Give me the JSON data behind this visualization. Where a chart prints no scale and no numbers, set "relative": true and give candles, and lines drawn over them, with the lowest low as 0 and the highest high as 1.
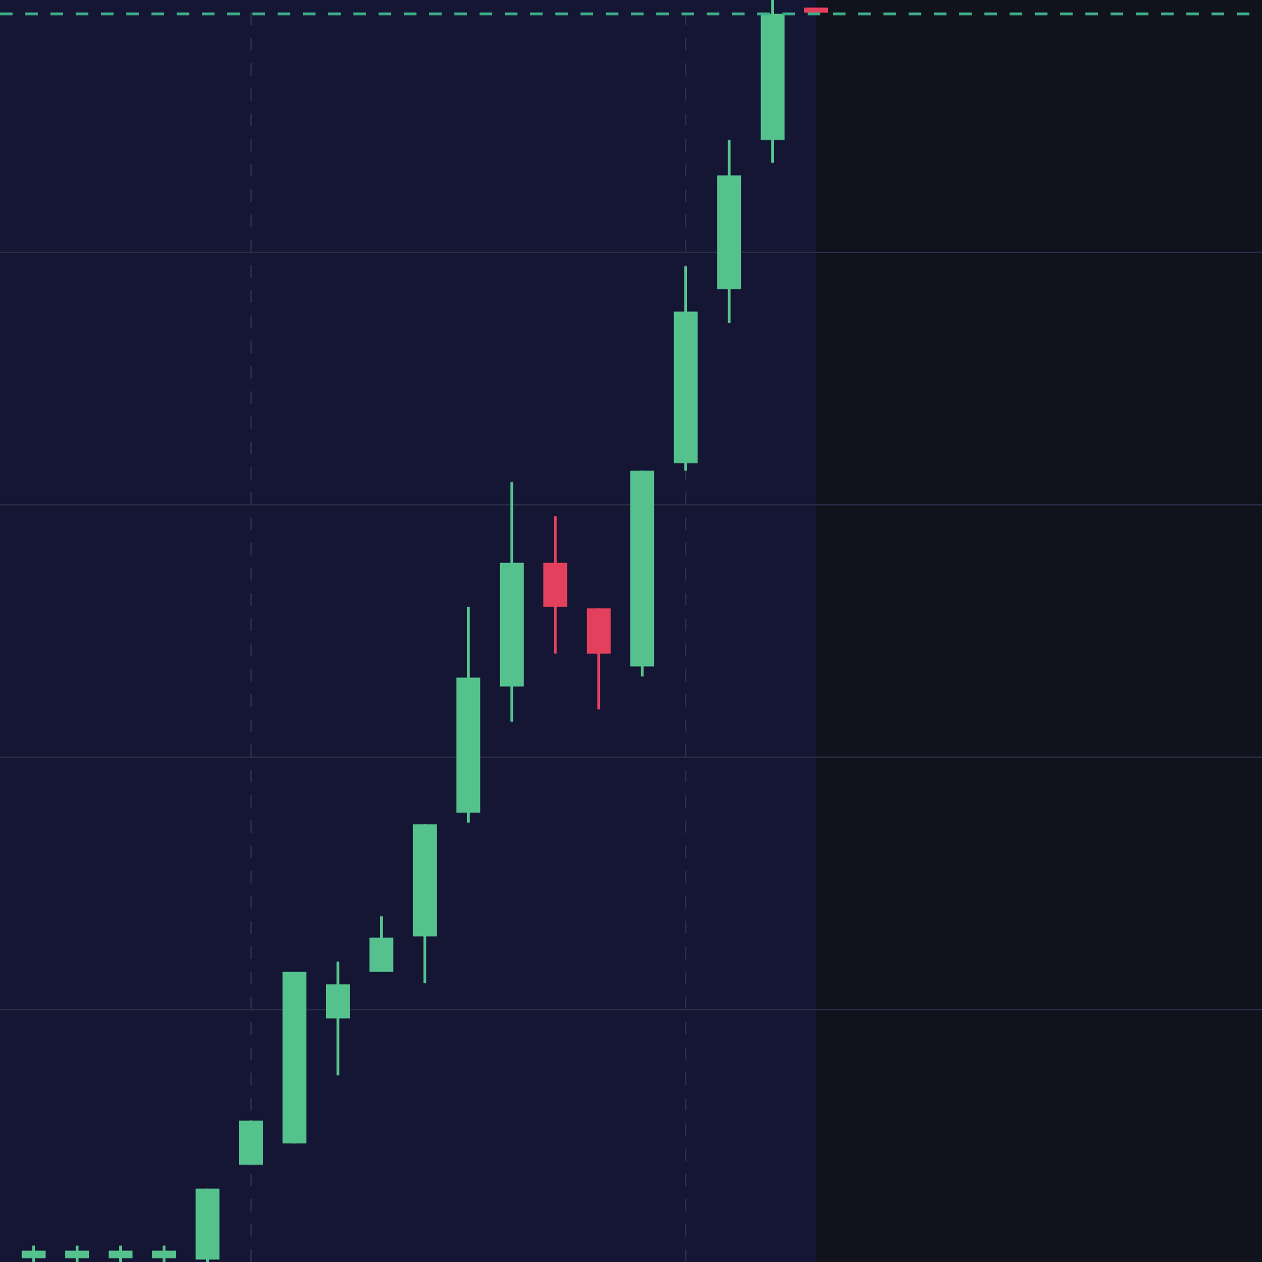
{
  "chart_data": {
    "type": "candlestick",
    "relative": true,
    "grid": "y",
    "categories": [
      null,
      null,
      null,
      null,
      null,
      null,
      null,
      null,
      null,
      null,
      null,
      null,
      null,
      null,
      null,
      null,
      null,
      null,
      null
    ],
    "ohlc": [
      [
        0.003,
        0.013,
        0,
        0.009
      ],
      [
        0.003,
        0.013,
        0,
        0.009
      ],
      [
        0.003,
        0.013,
        0,
        0.009
      ],
      [
        0.003,
        0.013,
        0,
        0.009
      ],
      [
        0.002,
        0.058,
        0,
        0.058
      ],
      [
        0.077,
        0.112,
        0.077,
        0.112
      ],
      [
        0.094,
        0.23,
        0.094,
        0.23
      ],
      [
        0.193,
        0.238,
        0.148,
        0.22
      ],
      [
        0.23,
        0.274,
        0.23,
        0.257
      ],
      [
        0.258,
        0.347,
        0.221,
        0.347
      ],
      [
        0.356,
        0.519,
        0.348,
        0.463
      ],
      [
        0.456,
        0.618,
        0.428,
        0.554
      ],
      [
        0.554,
        0.591,
        0.482,
        0.519
      ],
      [
        0.518,
        0.518,
        0.438,
        0.482
      ],
      [
        0.472,
        0.627,
        0.464,
        0.627
      ],
      [
        0.633,
        0.789,
        0.627,
        0.753
      ],
      [
        0.771,
        0.889,
        0.744,
        0.861
      ],
      [
        0.889,
        1.0,
        0.871,
        0.989
      ],
      [
        0.994,
        0.994,
        0.99,
        0.99
      ]
    ],
    "colors": [
      "#55c28e",
      "#55c28e",
      "#55c28e",
      "#55c28e",
      "#55c28e",
      "#55c28e",
      "#55c28e",
      "#55c28e",
      "#55c28e",
      "#55c28e",
      "#55c28e",
      "#55c28e",
      "#e2405c",
      "#e2405c",
      "#55c28e",
      "#55c28e",
      "#55c28e",
      "#55c28e",
      "#e2405c"
    ],
    "ref_lines": [
      {
        "axis": "y",
        "value": 0.989,
        "color": "#3fae8a",
        "line_style": "dashed"
      }
    ]
  }
}
